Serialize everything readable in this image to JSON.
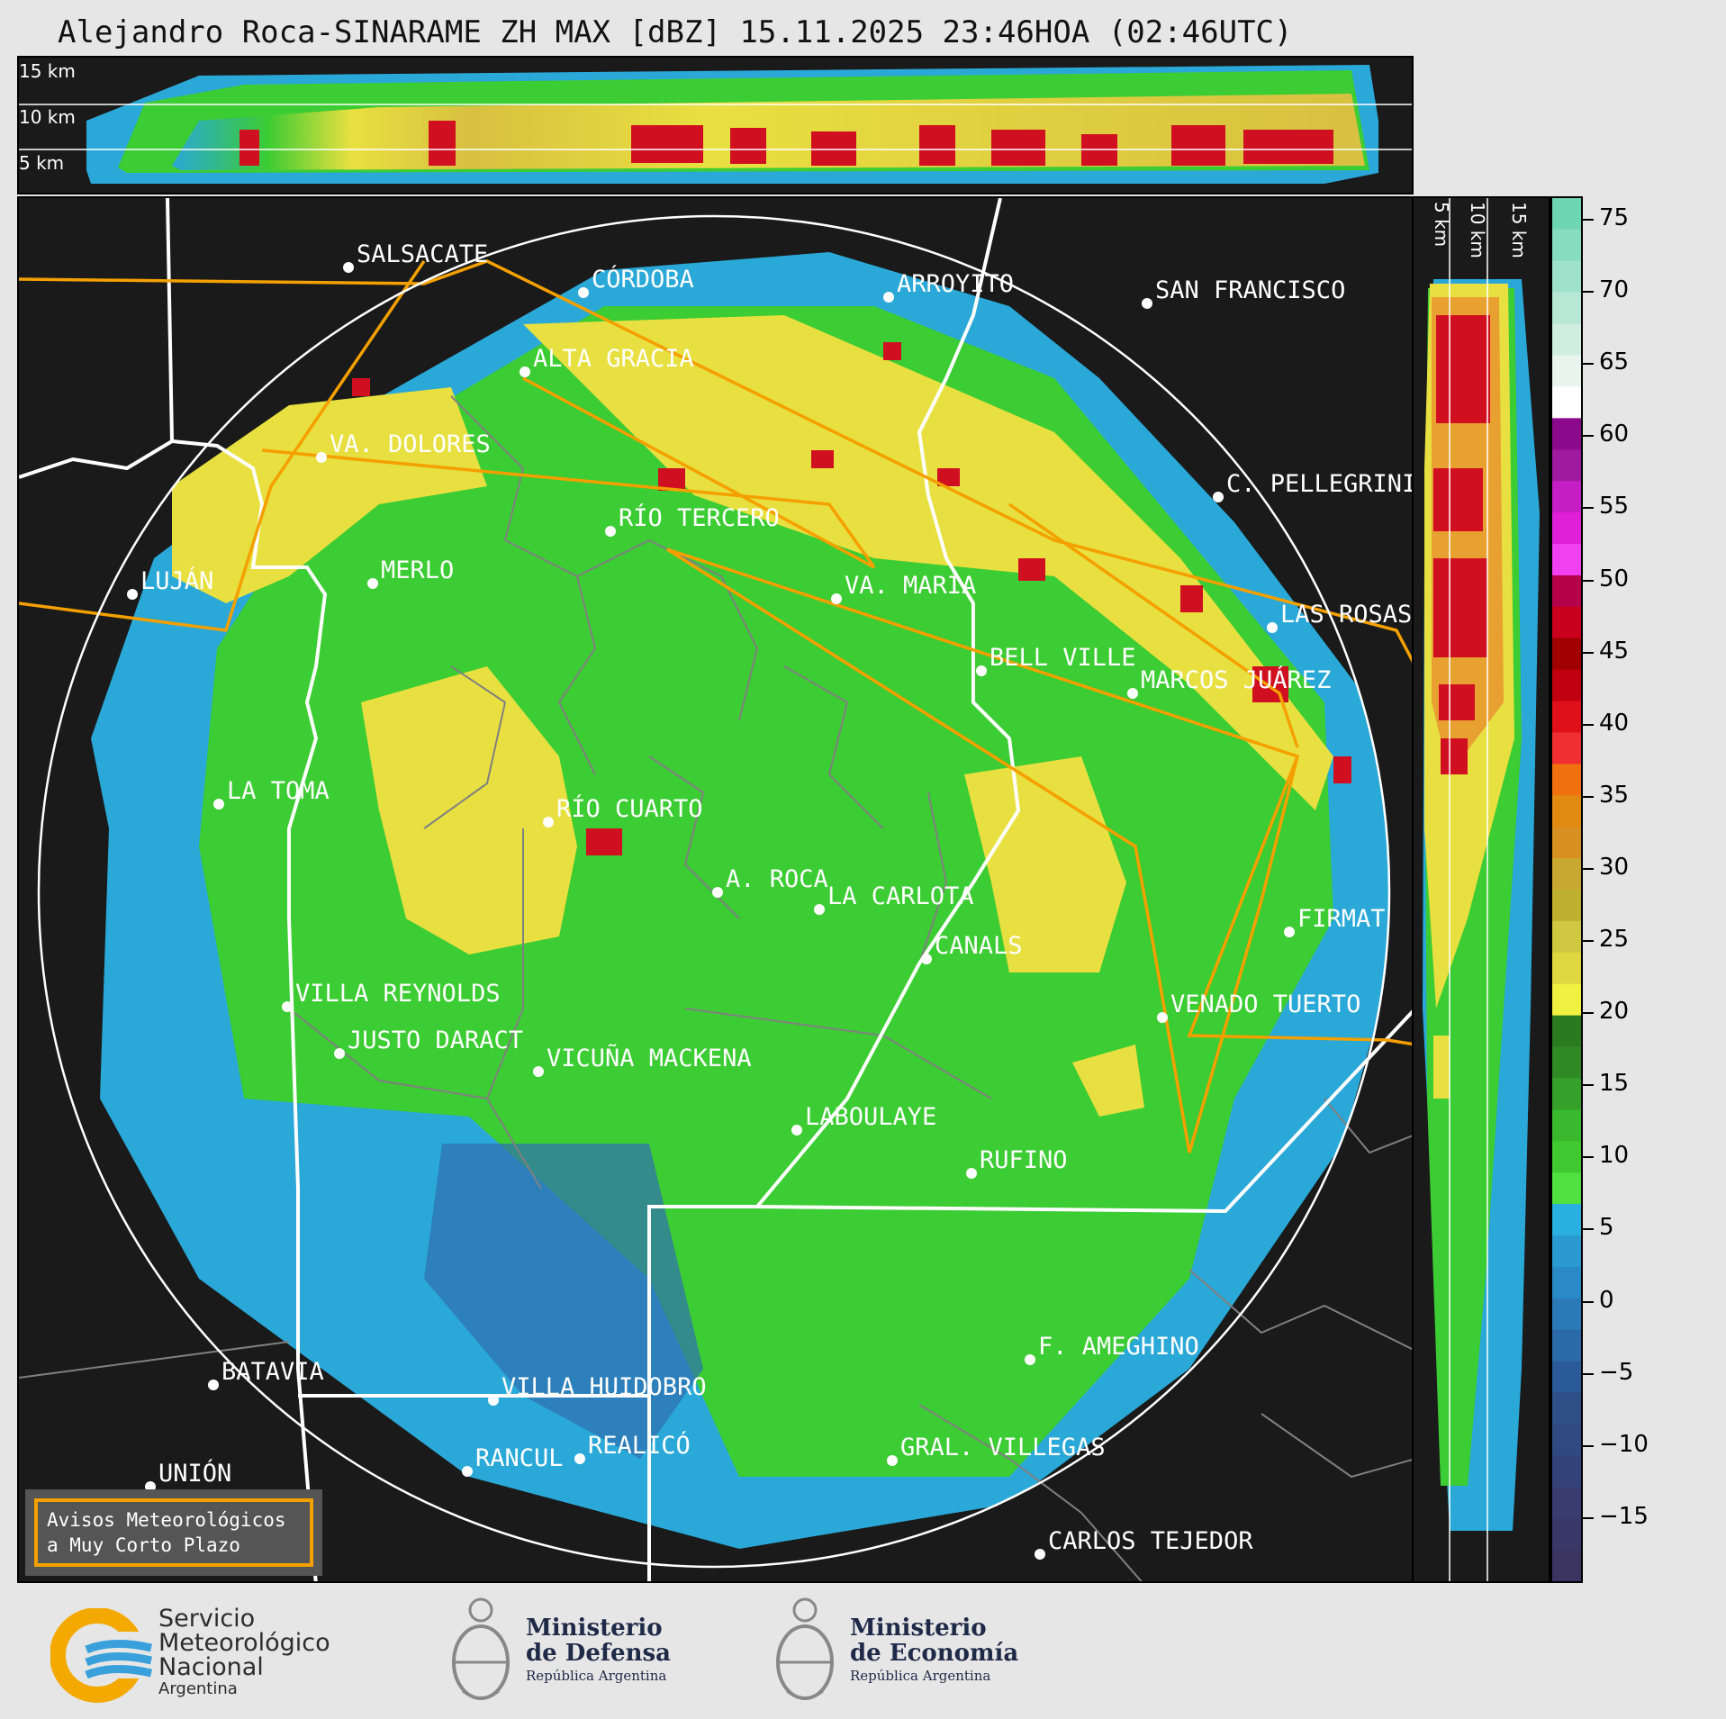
{
  "title": "Alejandro Roca-SINARAME ZH MAX [dBZ] 15.11.2025 23:46HOA (02:46UTC)",
  "top_section": {
    "labels": [
      "15 km",
      "10 km",
      "5 km"
    ]
  },
  "side_section": {
    "labels": [
      "5 km",
      "10 km",
      "15 km"
    ]
  },
  "colorbar": {
    "ticks": [
      "75",
      "70",
      "65",
      "60",
      "55",
      "50",
      "45",
      "40",
      "35",
      "30",
      "25",
      "20",
      "15",
      "10",
      "5",
      "0",
      "−5",
      "−10",
      "−15"
    ]
  },
  "cities": [
    {
      "name": "SALSACATE"
    },
    {
      "name": "CÓRDOBA"
    },
    {
      "name": "ARROYITO"
    },
    {
      "name": "SAN FRANCISCO"
    },
    {
      "name": "ALTA GRACIA"
    },
    {
      "name": "VA. DOLORES"
    },
    {
      "name": "C. PELLEGRINI"
    },
    {
      "name": "RÍO TERCERO"
    },
    {
      "name": "LUJÁN"
    },
    {
      "name": "MERLO"
    },
    {
      "name": "VA. MARÍA"
    },
    {
      "name": "LAS ROSAS"
    },
    {
      "name": "BELL VILLE"
    },
    {
      "name": "MARCOS JUÁREZ"
    },
    {
      "name": "LA TOMA"
    },
    {
      "name": "RÍO CUARTO"
    },
    {
      "name": "A. ROCA"
    },
    {
      "name": "LA CARLOTA"
    },
    {
      "name": "FIRMAT"
    },
    {
      "name": "CANALS"
    },
    {
      "name": "VILLA REYNOLDS"
    },
    {
      "name": "VENADO TUERTO"
    },
    {
      "name": "JUSTO DARACT"
    },
    {
      "name": "VICUÑA MACKENA"
    },
    {
      "name": "LABOULAYE"
    },
    {
      "name": "RUFINO"
    },
    {
      "name": "BATAVIA"
    },
    {
      "name": "VILLA HUIDOBRO"
    },
    {
      "name": "F. AMEGHINO"
    },
    {
      "name": "REALICÓ"
    },
    {
      "name": "RANCUL"
    },
    {
      "name": "GRAL. VILLEGAS"
    },
    {
      "name": "UNIÓN"
    },
    {
      "name": "CARLOS TEJEDOR"
    }
  ],
  "avisos": {
    "line1": "Avisos Meteorológicos",
    "line2": "a Muy Corto Plazo"
  },
  "logos": {
    "smn": {
      "line1": "Servicio",
      "line2": "Meteorológico",
      "line3": "Nacional",
      "line4": "Argentina"
    },
    "defensa": {
      "line1": "Ministerio",
      "line2": "de Defensa",
      "line3": "República Argentina"
    },
    "economia": {
      "line1": "Ministerio",
      "line2": "de Economía",
      "line3": "República Argentina"
    }
  },
  "colors": {
    "background": "#1a1a1a",
    "range_ring": "#ffffff",
    "warning_outline": "#f3a000",
    "province_border": "#ffffff",
    "department_border": "#808080"
  }
}
